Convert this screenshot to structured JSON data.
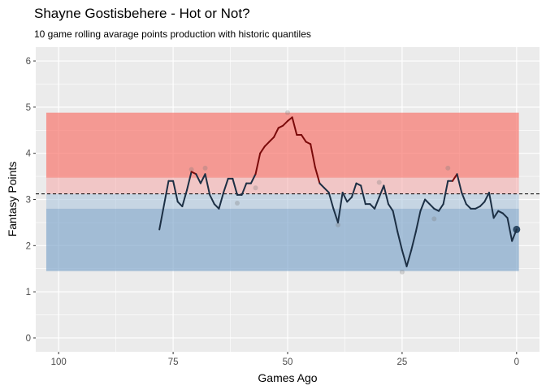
{
  "chart_data": {
    "type": "line",
    "title": "Shayne Gostisbehere - Hot or Not?",
    "subtitle": "10 game rolling avarage points production with historic quantiles",
    "xlabel": "Games Ago",
    "ylabel": "Fantasy Points",
    "x_reversed": true,
    "xlim": [
      105,
      -5
    ],
    "ylim": [
      -0.3,
      6.3
    ],
    "x_ticks": [
      100,
      75,
      50,
      25,
      0
    ],
    "y_ticks": [
      0,
      1,
      2,
      3,
      4,
      5,
      6
    ],
    "grid": true,
    "legend": "none",
    "bands": [
      {
        "ymin": 3.47,
        "ymax": 4.88,
        "color": "#f8766d",
        "opacity": 0.7
      },
      {
        "ymin": 3.12,
        "ymax": 3.47,
        "color": "#f5a8a8",
        "opacity": 0.55
      },
      {
        "ymin": 2.8,
        "ymax": 3.12,
        "color": "#a8c2dc",
        "opacity": 0.55
      },
      {
        "ymin": 1.45,
        "ymax": 2.8,
        "color": "#7ba3c9",
        "opacity": 0.65
      }
    ],
    "reference_line": {
      "y": 3.12,
      "style": "dashed"
    },
    "series": [
      {
        "x": [
          78,
          76,
          75,
          74,
          73,
          72,
          71,
          70,
          69,
          68,
          67,
          66,
          65,
          64,
          63,
          62,
          61,
          60,
          59,
          58,
          57,
          56,
          55,
          54,
          53,
          52,
          51,
          50,
          49,
          48,
          47,
          46,
          45,
          44,
          43,
          42,
          41,
          40,
          39,
          38,
          37,
          36,
          35,
          34,
          33,
          32,
          31,
          30,
          29,
          28,
          27,
          26,
          25,
          24,
          23,
          22,
          21,
          20,
          19,
          18,
          17,
          16,
          15,
          14,
          13,
          12,
          11,
          10,
          9,
          8,
          7,
          6,
          5,
          4,
          3,
          2,
          1,
          0
        ],
        "y": [
          2.35,
          3.4,
          3.4,
          2.95,
          2.85,
          3.2,
          3.6,
          3.55,
          3.35,
          3.55,
          3.1,
          2.9,
          2.8,
          3.15,
          3.45,
          3.45,
          3.1,
          3.1,
          3.35,
          3.35,
          3.55,
          4.0,
          4.15,
          4.25,
          4.35,
          4.55,
          4.6,
          4.7,
          4.78,
          4.4,
          4.4,
          4.25,
          4.2,
          3.7,
          3.35,
          3.25,
          3.15,
          2.8,
          2.5,
          3.15,
          2.95,
          3.05,
          3.35,
          3.3,
          2.9,
          2.9,
          2.8,
          3.05,
          3.3,
          2.9,
          2.75,
          2.3,
          1.9,
          1.55,
          1.9,
          2.3,
          2.75,
          3.0,
          2.9,
          2.8,
          2.75,
          2.9,
          3.4,
          3.4,
          3.55,
          3.15,
          2.9,
          2.8,
          2.8,
          2.85,
          2.95,
          3.15,
          2.6,
          2.75,
          2.7,
          2.6,
          2.1,
          2.35
        ],
        "hot_threshold": 3.47
      }
    ],
    "points": [
      {
        "x": 71,
        "y": 3.65
      },
      {
        "x": 68,
        "y": 3.68
      },
      {
        "x": 61,
        "y": 2.92
      },
      {
        "x": 57,
        "y": 3.25
      },
      {
        "x": 50,
        "y": 4.88
      },
      {
        "x": 39,
        "y": 2.45
      },
      {
        "x": 30,
        "y": 3.37
      },
      {
        "x": 25,
        "y": 1.43
      },
      {
        "x": 18,
        "y": 2.58
      },
      {
        "x": 15,
        "y": 3.68
      },
      {
        "x": 0,
        "y": 2.35
      }
    ]
  }
}
